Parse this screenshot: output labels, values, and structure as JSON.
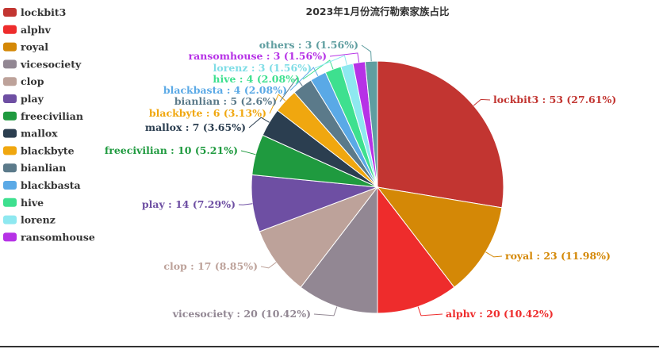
{
  "chart_data": {
    "type": "pie",
    "title": "2023年1月份流行勒索家族占比",
    "legend_position": "left",
    "slices": [
      {
        "name": "lockbit3",
        "value": 53,
        "percent": "27.61%",
        "color": "#c23531",
        "label": "lockbit3 : 53 (27.61%)"
      },
      {
        "name": "royal",
        "value": 23,
        "percent": "11.98%",
        "color": "#d48806",
        "label": "royal : 23 (11.98%)"
      },
      {
        "name": "alphv",
        "value": 20,
        "percent": "10.42%",
        "color": "#ee2c2c",
        "label": "alphv : 20 (10.42%)"
      },
      {
        "name": "vicesociety",
        "value": 20,
        "percent": "10.42%",
        "color": "#928793",
        "label": "vicesociety : 20 (10.42%)"
      },
      {
        "name": "clop",
        "value": 17,
        "percent": "8.85%",
        "color": "#bda29a",
        "label": "clop : 17 (8.85%)"
      },
      {
        "name": "play",
        "value": 14,
        "percent": "7.29%",
        "color": "#6e4fa3",
        "label": "play : 14 (7.29%)"
      },
      {
        "name": "freecivilian",
        "value": 10,
        "percent": "5.21%",
        "color": "#1f9a3f",
        "label": "freecivilian : 10 (5.21%)"
      },
      {
        "name": "mallox",
        "value": 7,
        "percent": "3.65%",
        "color": "#2b3e50",
        "label": "mallox : 7 (3.65%)"
      },
      {
        "name": "blackbyte",
        "value": 6,
        "percent": "3.13%",
        "color": "#f0a70f",
        "label": "blackbyte : 6 (3.13%)"
      },
      {
        "name": "bianlian",
        "value": 5,
        "percent": "2.6%",
        "color": "#5b7a8a",
        "label": "bianlian : 5 (2.6%)"
      },
      {
        "name": "blackbasta",
        "value": 4,
        "percent": "2.08%",
        "color": "#5aa9e6",
        "label": "blackbasta : 4 (2.08%)"
      },
      {
        "name": "hive",
        "value": 4,
        "percent": "2.08%",
        "color": "#3ee08f",
        "label": "hive : 4 (2.08%)"
      },
      {
        "name": "lorenz",
        "value": 3,
        "percent": "1.56%",
        "color": "#8ee8f0",
        "label": "lorenz : 3 (1.56%)"
      },
      {
        "name": "ransomhouse",
        "value": 3,
        "percent": "1.56%",
        "color": "#b632e6",
        "label": "ransomhouse : 3 (1.56%)"
      },
      {
        "name": "others",
        "value": 3,
        "percent": "1.56%",
        "color": "#5f9ea0",
        "label": "others : 3 (1.56%)"
      }
    ],
    "legend": [
      {
        "name": "lockbit3",
        "color": "#c23531"
      },
      {
        "name": "alphv",
        "color": "#ee2c2c"
      },
      {
        "name": "royal",
        "color": "#d48806"
      },
      {
        "name": "vicesociety",
        "color": "#928793"
      },
      {
        "name": "clop",
        "color": "#bda29a"
      },
      {
        "name": "play",
        "color": "#6e4fa3"
      },
      {
        "name": "freecivilian",
        "color": "#1f9a3f"
      },
      {
        "name": "mallox",
        "color": "#2b3e50"
      },
      {
        "name": "blackbyte",
        "color": "#f0a70f"
      },
      {
        "name": "bianlian",
        "color": "#5b7a8a"
      },
      {
        "name": "blackbasta",
        "color": "#5aa9e6"
      },
      {
        "name": "hive",
        "color": "#3ee08f"
      },
      {
        "name": "lorenz",
        "color": "#8ee8f0"
      },
      {
        "name": "ransomhouse",
        "color": "#b632e6"
      }
    ]
  }
}
